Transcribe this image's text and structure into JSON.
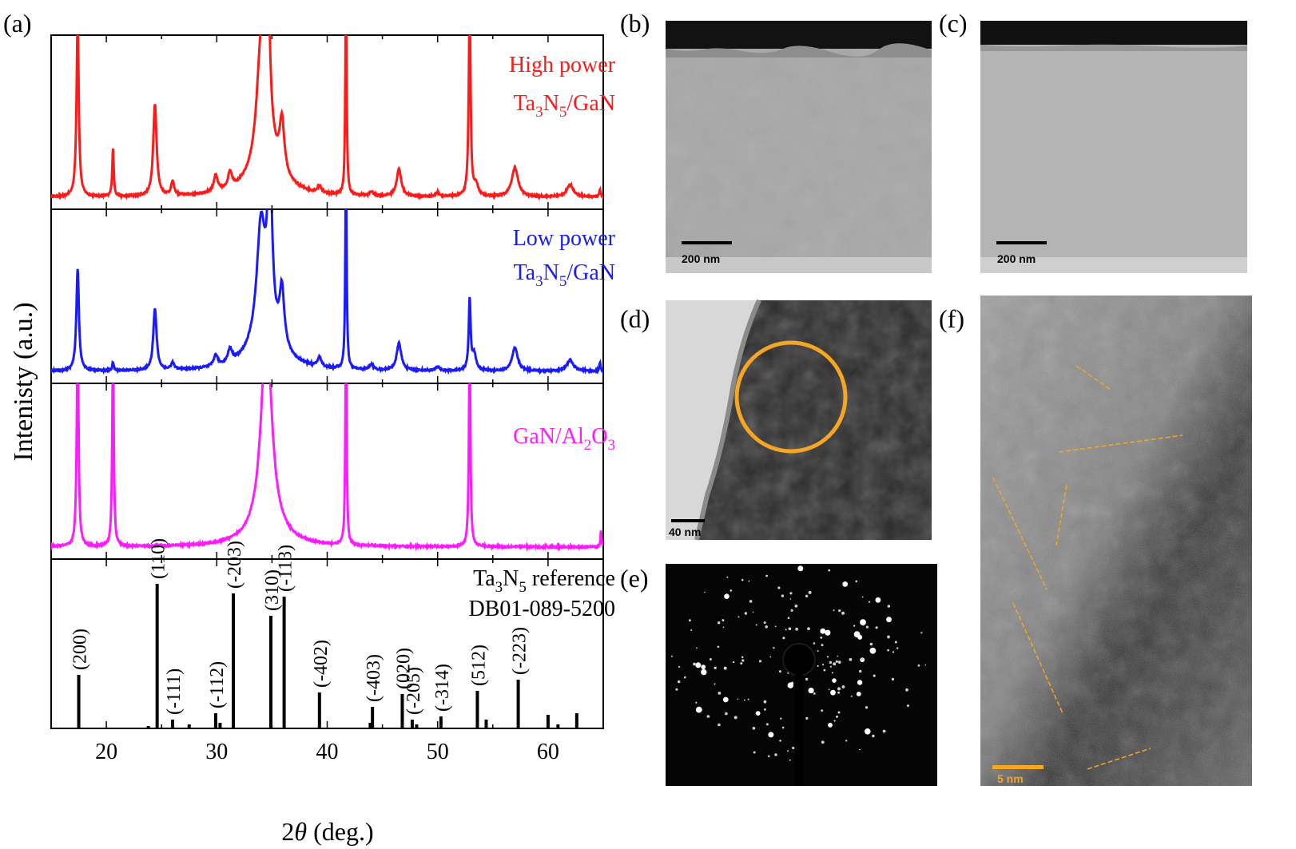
{
  "panels": {
    "a": "(a)",
    "b": "(b)",
    "c": "(c)",
    "d": "(d)",
    "e": "(e)",
    "f": "(f)"
  },
  "scale_bars": {
    "b": "200 nm",
    "c": "200 nm",
    "d": "40 nm",
    "f": "5 nm"
  },
  "colors": {
    "high_power": "#ff1a1a",
    "low_power": "#1a1aff",
    "gan_sapphire": "#ff1aff",
    "reference": "#000000",
    "annotation": "#f5a623"
  },
  "chart_data": {
    "type": "line",
    "xlabel": "2θ (deg.)",
    "ylabel": "Intenisty (a.u.)",
    "xlim": [
      15,
      65
    ],
    "xticks": [
      20,
      30,
      40,
      50,
      60
    ],
    "xtick_labels": [
      "20",
      "30",
      "40",
      "50",
      "60"
    ],
    "legend_placement": "top-right of each stacked panel",
    "series": [
      {
        "key": "high",
        "label_line1": "High power",
        "label_line2": "Ta3N5/GaN",
        "color": "#ff1a1a",
        "baseline": 0.03,
        "peaks": [
          [
            17.4,
            1.3,
            0.12
          ],
          [
            20.6,
            0.35,
            0.08
          ],
          [
            24.4,
            0.68,
            0.18
          ],
          [
            26.0,
            0.1,
            0.16
          ],
          [
            29.9,
            0.12,
            0.22
          ],
          [
            31.2,
            0.12,
            0.22
          ],
          [
            34.0,
            0.8,
            0.45
          ],
          [
            34.6,
            1.3,
            0.22
          ],
          [
            35.9,
            0.38,
            0.25
          ],
          [
            39.3,
            0.05,
            0.2
          ],
          [
            41.7,
            1.5,
            0.07
          ],
          [
            44.0,
            0.03,
            0.2
          ],
          [
            46.5,
            0.2,
            0.25
          ],
          [
            50.0,
            0.03,
            0.2
          ],
          [
            52.9,
            1.4,
            0.1
          ],
          [
            53.5,
            0.08,
            0.22
          ],
          [
            57.0,
            0.21,
            0.35
          ],
          [
            62.0,
            0.09,
            0.35
          ],
          [
            64.7,
            0.06,
            0.07
          ]
        ],
        "broad_hump": [
          34.5,
          0.3,
          1.5
        ]
      },
      {
        "key": "low",
        "label_line1": "Low power",
        "label_line2": "Ta3N5/GaN",
        "color": "#1a1aff",
        "baseline": 0.03,
        "peaks": [
          [
            17.4,
            0.75,
            0.14
          ],
          [
            20.6,
            0.06,
            0.08
          ],
          [
            24.4,
            0.45,
            0.18
          ],
          [
            26.0,
            0.05,
            0.16
          ],
          [
            29.9,
            0.08,
            0.22
          ],
          [
            31.2,
            0.1,
            0.22
          ],
          [
            34.0,
            0.8,
            0.45
          ],
          [
            34.8,
            1.3,
            0.22
          ],
          [
            35.9,
            0.42,
            0.25
          ],
          [
            39.3,
            0.07,
            0.2
          ],
          [
            41.7,
            1.5,
            0.07
          ],
          [
            44.0,
            0.04,
            0.2
          ],
          [
            46.5,
            0.2,
            0.25
          ],
          [
            50.0,
            0.03,
            0.2
          ],
          [
            52.9,
            0.52,
            0.1
          ],
          [
            53.3,
            0.12,
            0.22
          ],
          [
            57.0,
            0.17,
            0.3
          ],
          [
            62.0,
            0.08,
            0.35
          ],
          [
            64.7,
            0.06,
            0.07
          ]
        ],
        "broad_hump": [
          34.5,
          0.3,
          1.5
        ]
      },
      {
        "key": "gan",
        "label_line1": "GaN/Al2O3",
        "label_line2": "",
        "color": "#ff1aff",
        "baseline": 0.03,
        "peaks": [
          [
            17.4,
            1.5,
            0.1
          ],
          [
            20.6,
            1.5,
            0.08
          ],
          [
            34.5,
            1.5,
            0.55
          ],
          [
            41.7,
            1.5,
            0.07
          ],
          [
            52.9,
            1.5,
            0.08
          ],
          [
            64.8,
            0.12,
            0.06
          ]
        ],
        "broad_hump": [
          34.5,
          0.14,
          1.7
        ]
      }
    ],
    "reference": {
      "label_line1": "Ta3N5 reference",
      "label_line2": "DB01-089-5200",
      "sticks": [
        {
          "x": 17.5,
          "y": 0.33,
          "hkl": "(200)"
        },
        {
          "x": 24.6,
          "y": 0.9,
          "hkl": "(110)"
        },
        {
          "x": 26.0,
          "y": 0.05,
          "hkl": "(-111)"
        },
        {
          "x": 29.9,
          "y": 0.09,
          "hkl": "(-112)"
        },
        {
          "x": 31.5,
          "y": 0.84,
          "hkl": "(-203)"
        },
        {
          "x": 34.9,
          "y": 0.7,
          "hkl": "(310)"
        },
        {
          "x": 36.1,
          "y": 0.82,
          "hkl": "(-113)"
        },
        {
          "x": 39.3,
          "y": 0.22,
          "hkl": "(-402)"
        },
        {
          "x": 44.1,
          "y": 0.13,
          "hkl": "(-403)"
        },
        {
          "x": 46.8,
          "y": 0.21,
          "hkl": "(020)"
        },
        {
          "x": 47.7,
          "y": 0.05,
          "hkl": "(-205)"
        },
        {
          "x": 50.3,
          "y": 0.07,
          "hkl": "(-314)"
        },
        {
          "x": 53.6,
          "y": 0.23,
          "hkl": "(512)"
        },
        {
          "x": 57.3,
          "y": 0.3,
          "hkl": "(-223)"
        },
        {
          "x": 23.8,
          "y": 0.01,
          "hkl": ""
        },
        {
          "x": 27.5,
          "y": 0.02,
          "hkl": ""
        },
        {
          "x": 30.3,
          "y": 0.03,
          "hkl": ""
        },
        {
          "x": 43.9,
          "y": 0.03,
          "hkl": ""
        },
        {
          "x": 48.1,
          "y": 0.02,
          "hkl": ""
        },
        {
          "x": 54.4,
          "y": 0.05,
          "hkl": ""
        },
        {
          "x": 60.0,
          "y": 0.08,
          "hkl": ""
        },
        {
          "x": 60.9,
          "y": 0.02,
          "hkl": ""
        },
        {
          "x": 62.6,
          "y": 0.09,
          "hkl": ""
        }
      ]
    }
  }
}
